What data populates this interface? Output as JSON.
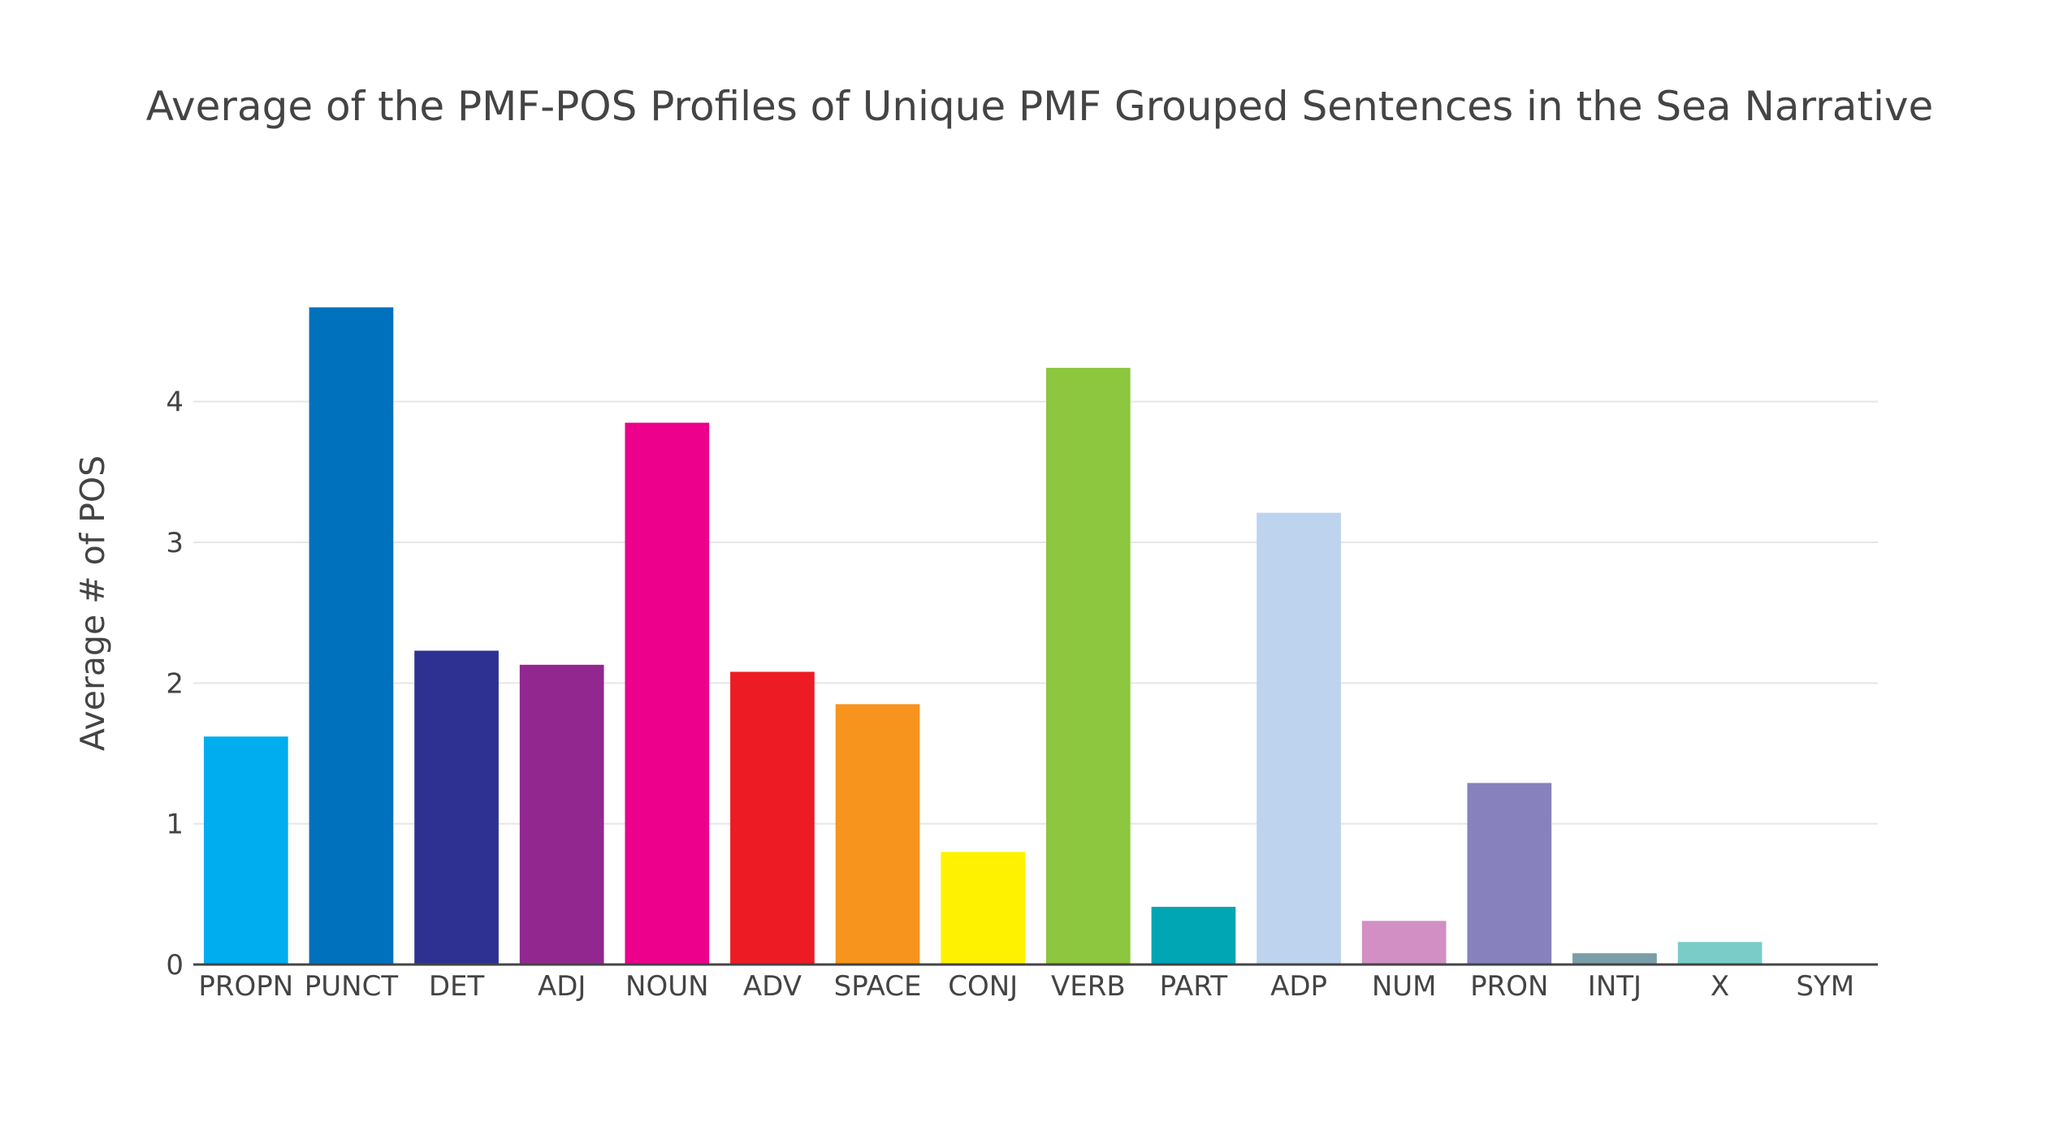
{
  "chart_data": {
    "type": "bar",
    "title": "Average of the PMF-POS Profiles of Unique PMF Grouped Sentences in the Sea Narrative",
    "xlabel": "",
    "ylabel": "Average # of POS",
    "categories": [
      "PROPN",
      "PUNCT",
      "DET",
      "ADJ",
      "NOUN",
      "ADV",
      "SPACE",
      "CONJ",
      "VERB",
      "PART",
      "ADP",
      "NUM",
      "PRON",
      "INTJ",
      "X",
      "SYM"
    ],
    "values": [
      1.62,
      4.67,
      2.23,
      2.13,
      3.85,
      2.08,
      1.85,
      0.8,
      4.24,
      0.41,
      3.21,
      0.31,
      1.29,
      0.08,
      0.16,
      0.0
    ],
    "colors": [
      "#00adee",
      "#0071bc",
      "#2e3192",
      "#92278f",
      "#ec008c",
      "#ed1c24",
      "#f7941d",
      "#fff200",
      "#8dc63f",
      "#00a6b4",
      "#bdd3ee",
      "#d18fc4",
      "#8781bd",
      "#7a9ea8",
      "#7accc8",
      "#444444"
    ],
    "yticks": [
      0,
      1,
      2,
      3,
      4
    ],
    "ylim": [
      0,
      4.95
    ],
    "grid": true,
    "legend": "none"
  }
}
